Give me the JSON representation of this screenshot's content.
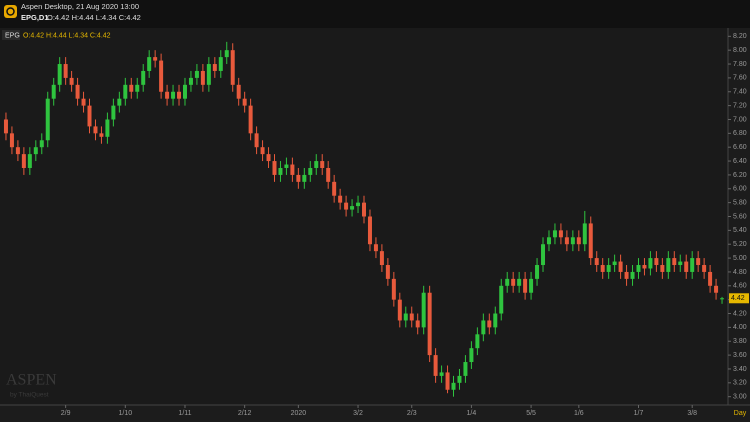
{
  "header": {
    "app_title": "Aspen Desktop, 21 Aug 2020 13:00",
    "symbol_timeframe": "EPG,D1",
    "ohlc_text": "O:4.42 H:4.44 L:4.34 C:4.42"
  },
  "chart_data": {
    "type": "candlestick",
    "symbol": "EPG",
    "ohlc_text": "O:4.42 H:4.44 L:4.34 C:4.42",
    "watermark": "ASPEN",
    "watermark_sub": "by ThaiQuest",
    "x_axis_unit": "Day",
    "up_color": "#2fc43f",
    "down_color": "#e85a3c",
    "xlim": [
      -1,
      121
    ],
    "ylim": [
      2.88,
      8.32
    ],
    "xticks": [
      {
        "value": 10,
        "label": "2/9"
      },
      {
        "value": 20,
        "label": "1/10"
      },
      {
        "value": 30,
        "label": "1/11"
      },
      {
        "value": 40,
        "label": "2/12"
      },
      {
        "value": 49,
        "label": "2020"
      },
      {
        "value": 59,
        "label": "3/2"
      },
      {
        "value": 68,
        "label": "2/3"
      },
      {
        "value": 78,
        "label": "1/4"
      },
      {
        "value": 88,
        "label": "5/5"
      },
      {
        "value": 96,
        "label": "1/6"
      },
      {
        "value": 106,
        "label": "1/7"
      },
      {
        "value": 115,
        "label": "3/8"
      }
    ],
    "yticks": [
      {
        "value": 3,
        "label": "3.00"
      },
      {
        "value": 3.2,
        "label": "3.20"
      },
      {
        "value": 3.4,
        "label": "3.40"
      },
      {
        "value": 3.6,
        "label": "3.60"
      },
      {
        "value": 3.8,
        "label": "3.80"
      },
      {
        "value": 4,
        "label": "4.00"
      },
      {
        "value": 4.2,
        "label": "4.20"
      },
      {
        "value": 4.4,
        "label": "4.40"
      },
      {
        "value": 4.6,
        "label": "4.60"
      },
      {
        "value": 4.8,
        "label": "4.80"
      },
      {
        "value": 5,
        "label": "5.00"
      },
      {
        "value": 5.2,
        "label": "5.20"
      },
      {
        "value": 5.4,
        "label": "5.40"
      },
      {
        "value": 5.6,
        "label": "5.60"
      },
      {
        "value": 5.8,
        "label": "5.80"
      },
      {
        "value": 6,
        "label": "6.00"
      },
      {
        "value": 6.2,
        "label": "6.20"
      },
      {
        "value": 6.4,
        "label": "6.40"
      },
      {
        "value": 6.6,
        "label": "6.60"
      },
      {
        "value": 6.8,
        "label": "6.80"
      },
      {
        "value": 7,
        "label": "7.00"
      },
      {
        "value": 7.2,
        "label": "7.20"
      },
      {
        "value": 7.4,
        "label": "7.40"
      },
      {
        "value": 7.6,
        "label": "7.60"
      },
      {
        "value": 7.8,
        "label": "7.80"
      },
      {
        "value": 8,
        "label": "8.00"
      },
      {
        "value": 8.2,
        "label": "8.20"
      }
    ],
    "ohlc": [
      [
        7.0,
        7.1,
        6.7,
        6.8
      ],
      [
        6.8,
        6.9,
        6.5,
        6.6
      ],
      [
        6.6,
        6.7,
        6.4,
        6.5
      ],
      [
        6.5,
        6.6,
        6.2,
        6.3
      ],
      [
        6.3,
        6.6,
        6.2,
        6.5
      ],
      [
        6.5,
        6.7,
        6.4,
        6.6
      ],
      [
        6.6,
        6.8,
        6.5,
        6.7
      ],
      [
        6.7,
        7.4,
        6.6,
        7.3
      ],
      [
        7.3,
        7.6,
        7.2,
        7.5
      ],
      [
        7.5,
        7.9,
        7.4,
        7.8
      ],
      [
        7.8,
        7.9,
        7.5,
        7.6
      ],
      [
        7.6,
        7.7,
        7.4,
        7.5
      ],
      [
        7.5,
        7.6,
        7.2,
        7.3
      ],
      [
        7.3,
        7.4,
        7.1,
        7.2
      ],
      [
        7.2,
        7.3,
        6.8,
        6.9
      ],
      [
        6.9,
        7.0,
        6.7,
        6.8
      ],
      [
        6.8,
        6.9,
        6.65,
        6.75
      ],
      [
        6.75,
        7.1,
        6.65,
        7.0
      ],
      [
        7.0,
        7.3,
        6.9,
        7.2
      ],
      [
        7.2,
        7.4,
        7.1,
        7.3
      ],
      [
        7.3,
        7.6,
        7.2,
        7.5
      ],
      [
        7.5,
        7.6,
        7.3,
        7.4
      ],
      [
        7.4,
        7.6,
        7.3,
        7.5
      ],
      [
        7.5,
        7.8,
        7.4,
        7.7
      ],
      [
        7.7,
        8.0,
        7.6,
        7.9
      ],
      [
        7.9,
        8.0,
        7.75,
        7.85
      ],
      [
        7.85,
        7.95,
        7.3,
        7.4
      ],
      [
        7.4,
        7.5,
        7.2,
        7.3
      ],
      [
        7.3,
        7.5,
        7.2,
        7.4
      ],
      [
        7.4,
        7.5,
        7.2,
        7.3
      ],
      [
        7.3,
        7.6,
        7.2,
        7.5
      ],
      [
        7.5,
        7.7,
        7.4,
        7.6
      ],
      [
        7.6,
        7.8,
        7.5,
        7.7
      ],
      [
        7.7,
        7.8,
        7.4,
        7.5
      ],
      [
        7.5,
        7.9,
        7.4,
        7.8
      ],
      [
        7.8,
        7.9,
        7.6,
        7.7
      ],
      [
        7.7,
        8.0,
        7.6,
        7.9
      ],
      [
        7.9,
        8.12,
        7.8,
        8.0
      ],
      [
        8.0,
        8.1,
        7.4,
        7.5
      ],
      [
        7.5,
        7.6,
        7.2,
        7.3
      ],
      [
        7.3,
        7.4,
        7.1,
        7.2
      ],
      [
        7.2,
        7.3,
        6.7,
        6.8
      ],
      [
        6.8,
        6.9,
        6.5,
        6.6
      ],
      [
        6.6,
        6.7,
        6.4,
        6.5
      ],
      [
        6.5,
        6.6,
        6.3,
        6.4
      ],
      [
        6.4,
        6.5,
        6.1,
        6.2
      ],
      [
        6.2,
        6.4,
        6.1,
        6.3
      ],
      [
        6.3,
        6.45,
        6.2,
        6.35
      ],
      [
        6.35,
        6.45,
        6.1,
        6.2
      ],
      [
        6.2,
        6.3,
        6.0,
        6.1
      ],
      [
        6.1,
        6.3,
        6.0,
        6.2
      ],
      [
        6.2,
        6.4,
        6.1,
        6.3
      ],
      [
        6.3,
        6.5,
        6.2,
        6.4
      ],
      [
        6.4,
        6.5,
        6.2,
        6.3
      ],
      [
        6.3,
        6.4,
        6.0,
        6.1
      ],
      [
        6.1,
        6.2,
        5.8,
        5.9
      ],
      [
        5.9,
        6.0,
        5.7,
        5.8
      ],
      [
        5.8,
        5.9,
        5.6,
        5.7
      ],
      [
        5.7,
        5.85,
        5.6,
        5.75
      ],
      [
        5.75,
        5.9,
        5.65,
        5.8
      ],
      [
        5.8,
        5.9,
        5.5,
        5.6
      ],
      [
        5.6,
        5.7,
        5.1,
        5.2
      ],
      [
        5.2,
        5.3,
        5.0,
        5.1
      ],
      [
        5.1,
        5.2,
        4.8,
        4.9
      ],
      [
        4.9,
        5.0,
        4.6,
        4.7
      ],
      [
        4.7,
        4.8,
        4.3,
        4.4
      ],
      [
        4.4,
        4.5,
        4.0,
        4.1
      ],
      [
        4.1,
        4.3,
        4.0,
        4.2
      ],
      [
        4.2,
        4.3,
        4.0,
        4.1
      ],
      [
        4.1,
        4.2,
        3.9,
        4.0
      ],
      [
        4.0,
        4.6,
        3.9,
        4.5
      ],
      [
        4.5,
        4.6,
        3.5,
        3.6
      ],
      [
        3.6,
        3.7,
        3.2,
        3.3
      ],
      [
        3.3,
        3.45,
        3.2,
        3.35
      ],
      [
        3.35,
        3.45,
        3.05,
        3.1
      ],
      [
        3.1,
        3.3,
        3.0,
        3.2
      ],
      [
        3.2,
        3.4,
        3.1,
        3.3
      ],
      [
        3.3,
        3.6,
        3.2,
        3.5
      ],
      [
        3.5,
        3.8,
        3.4,
        3.7
      ],
      [
        3.7,
        4.0,
        3.6,
        3.9
      ],
      [
        3.9,
        4.2,
        3.8,
        4.1
      ],
      [
        4.1,
        4.2,
        3.9,
        4.0
      ],
      [
        4.0,
        4.3,
        3.9,
        4.2
      ],
      [
        4.2,
        4.7,
        4.1,
        4.6
      ],
      [
        4.6,
        4.8,
        4.5,
        4.7
      ],
      [
        4.7,
        4.8,
        4.5,
        4.6
      ],
      [
        4.6,
        4.8,
        4.5,
        4.7
      ],
      [
        4.7,
        4.8,
        4.4,
        4.5
      ],
      [
        4.5,
        4.8,
        4.4,
        4.7
      ],
      [
        4.7,
        5.0,
        4.6,
        4.9
      ],
      [
        4.9,
        5.3,
        4.8,
        5.2
      ],
      [
        5.2,
        5.4,
        5.1,
        5.3
      ],
      [
        5.3,
        5.5,
        5.2,
        5.4
      ],
      [
        5.4,
        5.5,
        5.2,
        5.3
      ],
      [
        5.3,
        5.4,
        5.1,
        5.2
      ],
      [
        5.2,
        5.4,
        5.1,
        5.3
      ],
      [
        5.3,
        5.4,
        5.1,
        5.2
      ],
      [
        5.2,
        5.68,
        5.1,
        5.5
      ],
      [
        5.5,
        5.6,
        4.9,
        5.0
      ],
      [
        5.0,
        5.1,
        4.8,
        4.9
      ],
      [
        4.9,
        5.0,
        4.7,
        4.8
      ],
      [
        4.8,
        5.0,
        4.7,
        4.9
      ],
      [
        4.9,
        5.05,
        4.8,
        4.95
      ],
      [
        4.95,
        5.05,
        4.7,
        4.8
      ],
      [
        4.8,
        4.9,
        4.6,
        4.7
      ],
      [
        4.7,
        4.9,
        4.6,
        4.8
      ],
      [
        4.8,
        5.0,
        4.7,
        4.9
      ],
      [
        4.9,
        5.0,
        4.75,
        4.85
      ],
      [
        4.85,
        5.1,
        4.75,
        5.0
      ],
      [
        5.0,
        5.1,
        4.8,
        4.9
      ],
      [
        4.9,
        5.0,
        4.7,
        4.8
      ],
      [
        4.8,
        5.1,
        4.7,
        5.0
      ],
      [
        5.0,
        5.1,
        4.8,
        4.9
      ],
      [
        4.9,
        5.05,
        4.8,
        4.95
      ],
      [
        4.95,
        5.05,
        4.7,
        4.8
      ],
      [
        4.8,
        5.1,
        4.7,
        5.0
      ],
      [
        5.0,
        5.1,
        4.8,
        4.9
      ],
      [
        4.9,
        5.0,
        4.7,
        4.8
      ],
      [
        4.8,
        4.9,
        4.5,
        4.6
      ],
      [
        4.6,
        4.7,
        4.4,
        4.5
      ],
      [
        4.42,
        4.44,
        4.34,
        4.42
      ]
    ]
  }
}
